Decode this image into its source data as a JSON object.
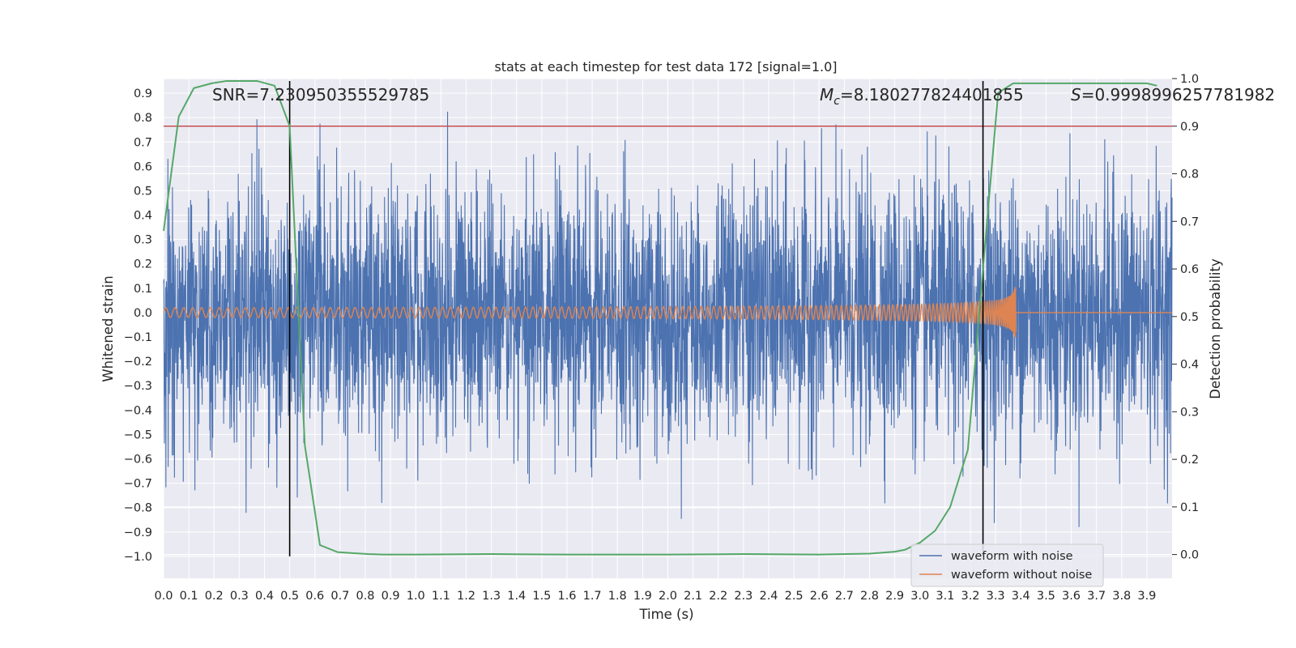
{
  "chart_data": {
    "type": "line",
    "title": "stats at each timestep for test data 172 [signal=1.0]",
    "xlabel": "Time (s)",
    "ylabel": "Whitened strain",
    "y2label": "Detection probability",
    "xlim": [
      0.0,
      4.0
    ],
    "ylim": [
      -1.09,
      0.96
    ],
    "y2lim": [
      -0.05,
      1.0
    ],
    "x_ticks": [
      "0.0",
      "0.1",
      "0.2",
      "0.3",
      "0.4",
      "0.5",
      "0.6",
      "0.7",
      "0.8",
      "0.9",
      "1.0",
      "1.1",
      "1.2",
      "1.3",
      "1.4",
      "1.5",
      "1.6",
      "1.7",
      "1.8",
      "1.9",
      "2.0",
      "2.1",
      "2.2",
      "2.3",
      "2.4",
      "2.5",
      "2.6",
      "2.7",
      "2.8",
      "2.9",
      "3.0",
      "3.1",
      "3.2",
      "3.3",
      "3.4",
      "3.5",
      "3.6",
      "3.7",
      "3.8",
      "3.9"
    ],
    "y_ticks": [
      "0.9",
      "0.8",
      "0.7",
      "0.6",
      "0.5",
      "0.4",
      "0.3",
      "0.2",
      "0.1",
      "0.0",
      "−0.1",
      "−0.2",
      "−0.3",
      "−0.4",
      "−0.5",
      "−0.6",
      "−0.7",
      "−0.8",
      "−0.9",
      "−1.0"
    ],
    "y2_ticks": [
      "1.0",
      "0.9",
      "0.8",
      "0.7",
      "0.6",
      "0.5",
      "0.4",
      "0.3",
      "0.2",
      "0.1",
      "0.0"
    ],
    "grid": true,
    "legend_position": "lower-right",
    "threshold_line": {
      "y2": 0.9,
      "color": "#c44e52"
    },
    "vertical_lines": [
      0.5,
      3.25
    ],
    "annotations": {
      "snr": "SNR=7.230950355529785",
      "mc_symbol": "M",
      "mc_sub": "c",
      "mc_value": "=8.180277824401855",
      "s_symbol": "S",
      "s_value": "=0.9998996257781982"
    },
    "series": [
      {
        "name": "waveform with noise",
        "color": "#4c72b0",
        "kind": "noise",
        "amplitude_range": [
          -1.0,
          0.9
        ]
      },
      {
        "name": "waveform without noise",
        "color": "#dd8452",
        "kind": "chirp",
        "merger_time": 3.38,
        "amplitude_start": 0.02,
        "amplitude_peak": 0.21
      },
      {
        "name": "detection probability",
        "color": "#55a868",
        "axis": "y2",
        "x": [
          0.0,
          0.03,
          0.06,
          0.12,
          0.19,
          0.25,
          0.31,
          0.37,
          0.44,
          0.5,
          0.56,
          0.62,
          0.69,
          0.75,
          0.81,
          0.87,
          0.94,
          1.0,
          1.3,
          1.6,
          2.0,
          2.3,
          2.6,
          2.8,
          2.9,
          2.94,
          3.0,
          3.06,
          3.12,
          3.19,
          3.25,
          3.31,
          3.37,
          3.5,
          3.7,
          3.8,
          3.9,
          3.94
        ],
        "y": [
          0.68,
          0.8,
          0.92,
          0.98,
          0.99,
          0.995,
          0.995,
          0.995,
          0.985,
          0.9,
          0.23,
          0.02,
          0.005,
          0.003,
          0.001,
          0.0,
          0.0,
          0.0,
          0.001,
          0.0,
          0.0,
          0.001,
          0.0,
          0.002,
          0.006,
          0.01,
          0.025,
          0.05,
          0.1,
          0.22,
          0.6,
          0.97,
          0.99,
          0.99,
          0.99,
          0.99,
          0.99,
          0.985
        ]
      }
    ]
  }
}
